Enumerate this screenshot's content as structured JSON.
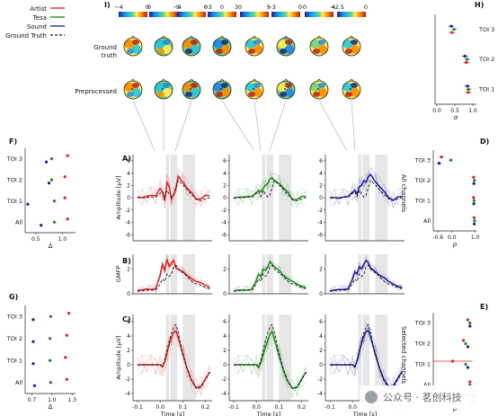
{
  "legend": {
    "items": [
      {
        "label": "Artist",
        "color": "#e02020",
        "dash": false
      },
      {
        "label": "Tesa",
        "color": "#1a8a1a",
        "dash": false
      },
      {
        "label": "Sound",
        "color": "#1a1aa0",
        "dash": false
      },
      {
        "label": "Ground Truth",
        "color": "#111111",
        "dash": true
      }
    ]
  },
  "panel_labels": {
    "I": "I)",
    "A": "A)",
    "B": "B)",
    "C": "C)",
    "D": "D)",
    "E": "E)",
    "F": "F)",
    "G": "G)",
    "H": "H)"
  },
  "topo": {
    "row_labels": [
      "Ground\ntruth",
      "Preprocessed"
    ],
    "colorbars": [
      {
        "ticks": [
          "−4",
          "0"
        ]
      },
      {
        "ticks": [
          "0",
          "5"
        ]
      },
      {
        "ticks": [
          "−4",
          "0"
        ]
      },
      {
        "ticks": [
          "−3",
          "0",
          "3"
        ]
      },
      {
        "ticks": [
          "0",
          "5"
        ]
      },
      {
        "ticks": [
          "−3",
          "0"
        ]
      },
      {
        "ticks": [
          "0",
          "4"
        ]
      },
      {
        "ticks": [
          "−2.5",
          "0"
        ]
      }
    ]
  },
  "side_labels": {
    "all_channels": "All channels",
    "selected_channels": "Selected channels"
  },
  "colors": {
    "artist": "#e02020",
    "tesa": "#1a8a1a",
    "sound": "#1a1aa0",
    "truth": "#111111",
    "shade": "#e6e6e6"
  },
  "chart_data": [
    {
      "panel": "A",
      "type": "line",
      "xlabel": "",
      "ylabel": "Amplitude [μV]",
      "ylim": [
        -7,
        7
      ],
      "xlim": [
        -0.12,
        0.23
      ],
      "yticks": [
        "-6",
        "-4",
        "-2",
        "0",
        "2",
        "4",
        "6"
      ],
      "toi_shades": [
        [
          0.025,
          0.04
        ],
        [
          0.045,
          0.075
        ],
        [
          0.1,
          0.155
        ]
      ],
      "x": [
        -0.1,
        -0.08,
        -0.06,
        -0.04,
        -0.02,
        0,
        0.01,
        0.02,
        0.03,
        0.04,
        0.05,
        0.06,
        0.07,
        0.08,
        0.1,
        0.12,
        0.14,
        0.16,
        0.18,
        0.2,
        0.22
      ],
      "series": [
        {
          "name": "Artist",
          "values": [
            0.1,
            0,
            0.2,
            0.4,
            0.3,
            1.5,
            1,
            -0.5,
            2.5,
            1.8,
            -0.2,
            0.5,
            1.5,
            3.5,
            2.5,
            1.5,
            0.8,
            -0.3,
            -0.2,
            0.4,
            0.3
          ]
        },
        {
          "name": "Tesa",
          "values": [
            -0.1,
            0.1,
            0.1,
            0.2,
            0.2,
            0.8,
            1.2,
            1,
            1.5,
            2,
            2.3,
            3,
            3.2,
            2.8,
            2.3,
            1.6,
            0.9,
            -0.4,
            -0.3,
            0.2,
            0.2
          ]
        },
        {
          "name": "Sound",
          "values": [
            0,
            0,
            -0.1,
            0.1,
            0.2,
            0.9,
            1.2,
            0.6,
            1.8,
            2,
            2.8,
            2.5,
            3.4,
            3.8,
            2.6,
            1.8,
            1,
            0,
            -0.4,
            0.1,
            0.2
          ]
        },
        {
          "name": "Ground Truth",
          "values": [
            0,
            0,
            0,
            0.1,
            0.1,
            0.7,
            1,
            0.2,
            1.2,
            0.6,
            0.1,
            0.4,
            1.6,
            2.8,
            2.1,
            1.3,
            0.5,
            -0.2,
            -0.5,
            -0.2,
            0
          ]
        }
      ]
    },
    {
      "panel": "B",
      "type": "line",
      "xlabel": "",
      "ylabel": "GMFP",
      "ylim": [
        0,
        3.2
      ],
      "xlim": [
        -0.12,
        0.23
      ],
      "yticks": [
        "0",
        "2"
      ],
      "toi_shades": [
        [
          0.025,
          0.04
        ],
        [
          0.045,
          0.075
        ],
        [
          0.1,
          0.155
        ]
      ],
      "x": [
        -0.1,
        -0.08,
        -0.06,
        -0.04,
        -0.02,
        0,
        0.01,
        0.02,
        0.03,
        0.04,
        0.05,
        0.06,
        0.07,
        0.08,
        0.1,
        0.12,
        0.14,
        0.16,
        0.18,
        0.2,
        0.22
      ],
      "series": [
        {
          "name": "Artist",
          "values": [
            0.3,
            0.3,
            0.4,
            0.35,
            0.4,
            1.5,
            2.4,
            1.9,
            2.8,
            2.2,
            2.5,
            2.7,
            2.1,
            2,
            1.8,
            1.5,
            1.2,
            1,
            0.9,
            0.7,
            0.5
          ]
        },
        {
          "name": "Tesa",
          "values": [
            0.25,
            0.3,
            0.3,
            0.3,
            0.35,
            1.1,
            1.6,
            1.4,
            2,
            1.9,
            2.2,
            2.6,
            2.4,
            2.2,
            1.9,
            1.5,
            1.2,
            1,
            0.8,
            0.6,
            0.5
          ]
        },
        {
          "name": "Sound",
          "values": [
            0.25,
            0.3,
            0.35,
            0.35,
            0.4,
            1.2,
            1.8,
            1.6,
            2.2,
            2,
            2.4,
            2.7,
            2.5,
            2.1,
            1.8,
            1.5,
            1.3,
            1,
            0.8,
            0.6,
            0.5
          ]
        },
        {
          "name": "Ground Truth",
          "values": [
            0.2,
            0.25,
            0.3,
            0.3,
            0.3,
            0.8,
            1.2,
            1,
            1.6,
            1.4,
            1.6,
            2.2,
            2.3,
            2,
            1.7,
            1.4,
            1,
            0.8,
            0.7,
            0.5,
            0.4
          ]
        }
      ]
    },
    {
      "panel": "C",
      "type": "line",
      "xlabel": "Time [s]",
      "ylabel": "Amplitude [μV]",
      "ylim": [
        -5,
        7
      ],
      "xlim": [
        -0.12,
        0.23
      ],
      "yticks": [
        "-4",
        "-2",
        "0",
        "2",
        "4",
        "6"
      ],
      "xticks": [
        "-0.1",
        "0.0",
        "0.1",
        "0.2"
      ],
      "toi_shades": [
        [
          0.025,
          0.04
        ],
        [
          0.045,
          0.075
        ],
        [
          0.1,
          0.155
        ]
      ],
      "x": [
        -0.1,
        -0.08,
        -0.06,
        -0.04,
        -0.02,
        0,
        0.01,
        0.02,
        0.03,
        0.04,
        0.05,
        0.06,
        0.07,
        0.08,
        0.1,
        0.12,
        0.14,
        0.16,
        0.18,
        0.2,
        0.22
      ],
      "series": [
        {
          "name": "Artist",
          "values": [
            0,
            0,
            0,
            0,
            0,
            0,
            -0.3,
            0.4,
            1.6,
            2.8,
            3.8,
            4.5,
            4.7,
            3.8,
            1.4,
            -0.6,
            -2.2,
            -3.2,
            -3,
            -2,
            -1
          ]
        },
        {
          "name": "Tesa",
          "values": [
            0,
            0,
            0,
            0,
            0,
            0,
            -0.4,
            0.3,
            1.4,
            2.4,
            3.4,
            4.2,
            4.6,
            3.6,
            1.2,
            -0.8,
            -2.4,
            -3.3,
            -3.1,
            -2,
            -1
          ]
        },
        {
          "name": "Sound",
          "values": [
            0,
            0,
            0,
            0,
            0,
            0,
            -0.3,
            0.5,
            1.8,
            3,
            4,
            4.6,
            4.8,
            3.9,
            1.5,
            -0.5,
            -2.1,
            -3,
            -2.9,
            -1.9,
            -0.9
          ]
        },
        {
          "name": "Ground Truth",
          "values": [
            0,
            0,
            0,
            0,
            0,
            0,
            -0.2,
            0.6,
            2,
            3.3,
            4.4,
            5.2,
            5.6,
            4.4,
            1.6,
            -0.6,
            -2.3,
            -3.3,
            -3.2,
            -2.1,
            -1
          ]
        }
      ]
    },
    {
      "panel": "D",
      "type": "scatter",
      "xlabel": "ρ",
      "ylabel": "",
      "xlim": [
        -0.8,
        1.05
      ],
      "xticks": [
        "-0.6",
        "0.0",
        "1.0"
      ],
      "categories": [
        "TOI 3",
        "TOI 2",
        "TOI 1",
        "All"
      ],
      "series": [
        {
          "name": "Artist",
          "values": [
            -0.45,
            0.93,
            0.93,
            0.95
          ]
        },
        {
          "name": "Tesa",
          "values": [
            -0.05,
            0.96,
            0.95,
            0.97
          ]
        },
        {
          "name": "Sound",
          "values": [
            -0.55,
            0.94,
            0.94,
            0.96
          ]
        }
      ]
    },
    {
      "panel": "E",
      "type": "scatter",
      "xlabel": "ρ",
      "ylabel": "",
      "xlim": [
        0.82,
        1.02
      ],
      "xticks": [
        "0.8",
        "0.9",
        "1.0"
      ],
      "categories": [
        "TOI 3",
        "TOI 2",
        "TOI 1",
        "All"
      ],
      "series": [
        {
          "name": "Artist",
          "values": [
            0.98,
            0.96,
            0.91,
            0.99
          ]
        },
        {
          "name": "Tesa",
          "values": [
            0.99,
            0.97,
            0.97,
            0.99
          ]
        },
        {
          "name": "Sound",
          "values": [
            0.99,
            0.98,
            0.98,
            0.995
          ]
        }
      ]
    },
    {
      "panel": "F",
      "type": "scatter",
      "xlabel": "Δ",
      "ylabel": "",
      "xlim": [
        0.3,
        1.25
      ],
      "xticks": [
        "0.5",
        "1.0"
      ],
      "categories": [
        "TOI 3",
        "TOI 2",
        "TOI 1",
        "All"
      ],
      "series": [
        {
          "name": "Artist",
          "values": [
            1.1,
            1.05,
            1.05,
            1.1
          ]
        },
        {
          "name": "Tesa",
          "values": [
            0.8,
            0.8,
            0.85,
            0.85
          ]
        },
        {
          "name": "Sound",
          "values": [
            0.7,
            0.75,
            0.35,
            0.6
          ]
        }
      ]
    },
    {
      "panel": "G",
      "type": "scatter",
      "xlabel": "Δ",
      "ylabel": "",
      "xlim": [
        0.6,
        1.35
      ],
      "xticks": [
        "0.7",
        "1.0",
        "1.3"
      ],
      "categories": [
        "TOI 3",
        "TOI 2",
        "TOI 1",
        "All"
      ],
      "series": [
        {
          "name": "Artist",
          "values": [
            1.25,
            1.22,
            1.2,
            1.22
          ]
        },
        {
          "name": "Tesa",
          "values": [
            0.98,
            0.97,
            0.97,
            0.98
          ]
        },
        {
          "name": "Sound",
          "values": [
            0.72,
            0.72,
            0.72,
            0.74
          ]
        }
      ]
    },
    {
      "panel": "H",
      "type": "scatter",
      "xlabel": "σ",
      "ylabel": "",
      "xlim": [
        -0.05,
        1.1
      ],
      "xticks": [
        "0.0",
        "0.5",
        "1.0"
      ],
      "categories": [
        "TOI 3",
        "TOI 2",
        "TOI 1"
      ],
      "series": [
        {
          "name": "Sound",
          "values": [
            0.4,
            0.78,
            0.85
          ]
        },
        {
          "name": "Tesa",
          "values": [
            0.48,
            0.84,
            0.88
          ]
        },
        {
          "name": "Artist",
          "values": [
            0.42,
            0.82,
            0.87
          ]
        }
      ]
    }
  ],
  "watermark": {
    "text": "公众号 · 茗创科技"
  }
}
